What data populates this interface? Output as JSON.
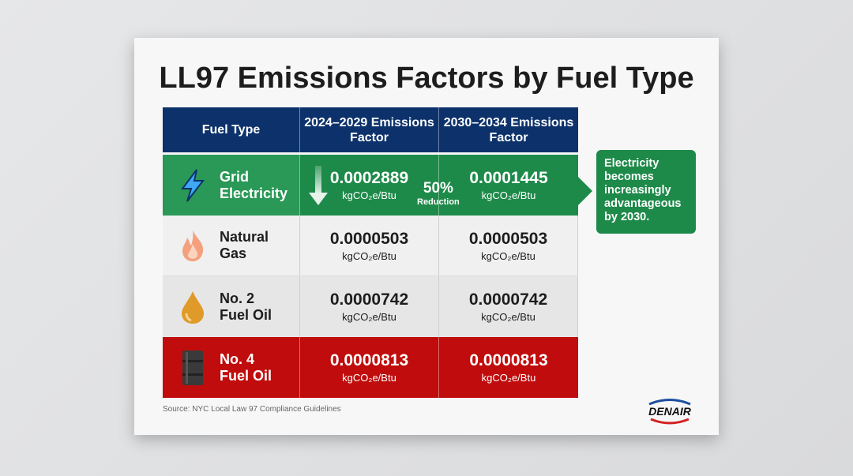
{
  "title": "LL97 Emissions Factors by Fuel Type",
  "headers": [
    "Fuel Type",
    "2024–2029 Emissions Factor",
    "2030–2034 Emissions Factor"
  ],
  "rows": [
    {
      "fuel": "Grid Electricity",
      "icon": "lightning-bolt-icon",
      "v1": "0.0002889",
      "v2": "0.0001445",
      "unit": "kgCO₂e/Btu",
      "color": "#1e8a4a"
    },
    {
      "fuel": "Natural Gas",
      "icon": "flame-icon",
      "v1": "0.0000503",
      "v2": "0.0000503",
      "unit": "kgCO₂e/Btu"
    },
    {
      "fuel": "No. 2 Fuel Oil",
      "icon": "oil-drop-icon",
      "v1": "0.0000742",
      "v2": "0.0000742",
      "unit": "kgCO₂e/Btu"
    },
    {
      "fuel": "No. 4 Fuel Oil",
      "icon": "oil-barrel-icon",
      "v1": "0.0000813",
      "v2": "0.0000813",
      "unit": "kgCO₂e/Btu",
      "color": "#c00c0c"
    }
  ],
  "reduction": {
    "percent": "50%",
    "label": "Reduction"
  },
  "callout": "Electricity becomes increasingly advantageous by 2030.",
  "source": "Source: NYC Local Law 97 Compliance Guidelines",
  "logo": "DENAIR",
  "colors": {
    "header": "#0d326b",
    "green": "#1e8a4a",
    "red": "#c00c0c"
  }
}
